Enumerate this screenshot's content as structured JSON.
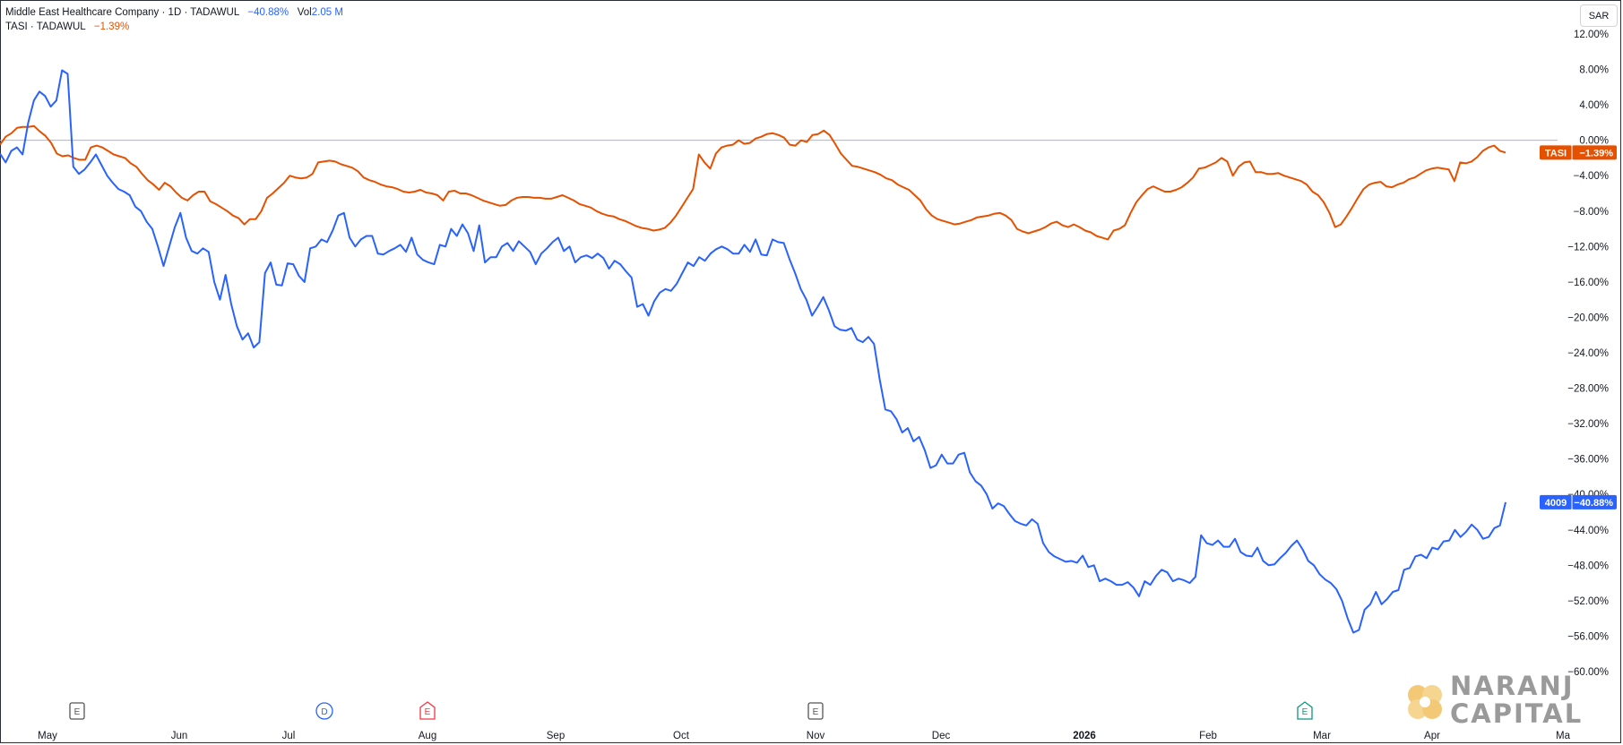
{
  "legend": {
    "main_name": "Middle East Healthcare Company",
    "main_interval": "1D",
    "main_exchange": "TADAWUL",
    "main_change": "−40.88%",
    "vol_label": "Vol",
    "vol_value": "2.05",
    "vol_unit": "M",
    "compare_name": "TASI",
    "compare_exchange": "TADAWUL",
    "compare_change": "−1.39%"
  },
  "currency": "SAR",
  "logo": {
    "line1": "NARANJ",
    "line2": "CAPITAL"
  },
  "colors": {
    "main": "#2962ff",
    "compare": "#e65100",
    "event_earnings": "#555555",
    "event_dividend": "#2962ff",
    "event_earnings_red": "#f23645",
    "event_earnings_teal": "#089981"
  },
  "chart_data": {
    "type": "line",
    "title": "",
    "ylim": [
      -60,
      12
    ],
    "y_ticks": [
      "12.00%",
      "8.00%",
      "4.00%",
      "0.00%",
      "-4.00%",
      "-8.00%",
      "-12.00%",
      "-16.00%",
      "-20.00%",
      "-24.00%",
      "-28.00%",
      "-32.00%",
      "-36.00%",
      "-40.00%",
      "-44.00%",
      "-48.00%",
      "-52.00%",
      "-56.00%",
      "-60.00%"
    ],
    "x_ticks": [
      {
        "label": "May",
        "bold": false
      },
      {
        "label": "Jun",
        "bold": false
      },
      {
        "label": "Jul",
        "bold": false
      },
      {
        "label": "Aug",
        "bold": false
      },
      {
        "label": "Sep",
        "bold": false
      },
      {
        "label": "Oct",
        "bold": false
      },
      {
        "label": "Nov",
        "bold": false
      },
      {
        "label": "Dec",
        "bold": false
      },
      {
        "label": "2026",
        "bold": true
      },
      {
        "label": "Feb",
        "bold": false
      },
      {
        "label": "Mar",
        "bold": false
      },
      {
        "label": "Apr",
        "bold": false
      },
      {
        "label": "Ma",
        "bold": false
      }
    ],
    "x_tick_index": [
      0,
      22,
      43,
      64,
      86,
      107,
      129,
      150,
      172,
      193,
      213,
      234,
      255
    ],
    "grid": false,
    "zero_line": true,
    "series": [
      {
        "name": "4009",
        "last_label": "−40.88%",
        "values": [
          -1.5,
          -2.5,
          -1.2,
          -0.8,
          -1.6,
          2,
          4.5,
          5.5,
          5,
          3.8,
          4.5,
          7.9,
          7.5,
          -3,
          -3.8,
          -3.3,
          -2.5,
          -1.6,
          -2.8,
          -4,
          -4.8,
          -5.5,
          -5.8,
          -6.2,
          -7.5,
          -8,
          -9.2,
          -10,
          -12,
          -14.2,
          -12,
          -9.8,
          -8.2,
          -11,
          -12.5,
          -12.8,
          -12.2,
          -12.6,
          -16,
          -18,
          -15.2,
          -18.5,
          -21,
          -22.5,
          -21.8,
          -23.4,
          -22.8,
          -15,
          -13.8,
          -16.3,
          -16.4,
          -13.9,
          -14,
          -15.3,
          -16,
          -12.2,
          -12,
          -11.2,
          -11.5,
          -10.2,
          -8.5,
          -8.2,
          -11,
          -12,
          -11.2,
          -10.8,
          -10.8,
          -12.8,
          -12.9,
          -12.5,
          -12.2,
          -11.8,
          -12.6,
          -11,
          -12.9,
          -13.5,
          -13.8,
          -14,
          -11.8,
          -12,
          -10,
          -10.8,
          -9.5,
          -10.5,
          -12.5,
          -9.6,
          -13.8,
          -13.2,
          -13.2,
          -12,
          -11.6,
          -12.5,
          -11.4,
          -12,
          -12.6,
          -14,
          -12.8,
          -12.2,
          -11.5,
          -11,
          -12.5,
          -12,
          -13.8,
          -13.2,
          -13,
          -13.3,
          -12.8,
          -13.3,
          -14.5,
          -13.6,
          -14,
          -14.8,
          -15.5,
          -18.8,
          -18.5,
          -19.8,
          -18.2,
          -17.2,
          -16.8,
          -17,
          -16.2,
          -15,
          -13.8,
          -14.2,
          -13.2,
          -13.6,
          -12.8,
          -12.3,
          -12,
          -12.3,
          -12.8,
          -12.8,
          -11.8,
          -12.6,
          -11.2,
          -12.9,
          -13,
          -11.2,
          -11.5,
          -11.6,
          -13.4,
          -15,
          -16.8,
          -18,
          -19.8,
          -18.8,
          -17.7,
          -19.2,
          -21,
          -21.4,
          -21.5,
          -21.2,
          -22.5,
          -22.8,
          -22.2,
          -23,
          -27,
          -30.4,
          -30.6,
          -31.5,
          -33,
          -32.5,
          -34,
          -33.5,
          -35,
          -37,
          -36.7,
          -35.5,
          -36.5,
          -36.5,
          -35.5,
          -35.3,
          -37.5,
          -38.5,
          -39,
          -40,
          -41.6,
          -41,
          -41.3,
          -42.2,
          -43,
          -43.3,
          -43.5,
          -42.8,
          -43.3,
          -45.5,
          -46.5,
          -47,
          -47.3,
          -47.6,
          -47.5,
          -47.7,
          -46.9,
          -48.2,
          -48,
          -49.8,
          -49.5,
          -49.8,
          -50.2,
          -50.2,
          -49.9,
          -50.5,
          -51.5,
          -49.8,
          -50.2,
          -49.2,
          -48.5,
          -48.8,
          -49.8,
          -49.5,
          -49.7,
          -50,
          -49.3,
          -44.6,
          -45.5,
          -45.7,
          -45.2,
          -45.9,
          -45.9,
          -45,
          -46.5,
          -46.9,
          -47,
          -46,
          -47.5,
          -48,
          -47.9,
          -47.2,
          -46.6,
          -45.8,
          -45.2,
          -46.2,
          -47.5,
          -48,
          -49,
          -49.6,
          -50,
          -50.7,
          -52,
          -54,
          -55.6,
          -55.3,
          -53,
          -52.4,
          -51,
          -52.4,
          -51.8,
          -51,
          -50.8,
          -48.5,
          -48.3,
          -47,
          -46.8,
          -47.2,
          -46,
          -46.2,
          -45.3,
          -45.2,
          -44,
          -44.8,
          -44.2,
          -43.4,
          -44,
          -45,
          -44.8,
          -43.8,
          -43.5,
          -40.88
        ]
      },
      {
        "name": "TASI",
        "last_label": "−1.39%",
        "values": [
          -0.5,
          0.4,
          0.8,
          1.4,
          1.5,
          1.5,
          1.6,
          1,
          0.5,
          -0.3,
          -1.5,
          -1.8,
          -1.7,
          -2,
          -2.2,
          -2.2,
          -0.8,
          -0.6,
          -0.8,
          -1.2,
          -1.6,
          -1.8,
          -2,
          -2.6,
          -3,
          -3.8,
          -4.5,
          -5,
          -5.6,
          -4.8,
          -5.2,
          -5.9,
          -6.5,
          -6.8,
          -6.2,
          -5.8,
          -5.8,
          -6.9,
          -7.2,
          -7.6,
          -8,
          -8.5,
          -8.8,
          -9.5,
          -8.9,
          -8.9,
          -8,
          -6.5,
          -6,
          -5.4,
          -4.8,
          -4,
          -4.2,
          -4.3,
          -4.2,
          -3.8,
          -2.5,
          -2.4,
          -2.3,
          -2.4,
          -2.7,
          -2.9,
          -3.1,
          -3.5,
          -4.2,
          -4.5,
          -4.7,
          -5,
          -5.2,
          -5.3,
          -5.5,
          -5.8,
          -5.9,
          -5.8,
          -5.6,
          -5.9,
          -6,
          -6.2,
          -6.8,
          -5.8,
          -5.7,
          -6,
          -6,
          -6.2,
          -6.5,
          -6.8,
          -7,
          -7.2,
          -7.4,
          -7.3,
          -6.8,
          -6.5,
          -6.4,
          -6.4,
          -6.5,
          -6.5,
          -6.6,
          -6.6,
          -6.4,
          -6.2,
          -6.5,
          -6.8,
          -7.2,
          -7.4,
          -7.6,
          -8,
          -8.3,
          -8.5,
          -8.6,
          -8.9,
          -9.1,
          -9.4,
          -9.7,
          -9.9,
          -10,
          -10.2,
          -10.1,
          -9.9,
          -9.3,
          -8.5,
          -7.5,
          -6.5,
          -5.5,
          -1.6,
          -2.5,
          -3.2,
          -1.5,
          -0.8,
          -0.6,
          -0.5,
          0,
          -0.4,
          -0.3,
          0.2,
          0.4,
          0.7,
          0.8,
          0.6,
          0.3,
          -0.5,
          -0.6,
          0,
          -0.2,
          0.6,
          0.7,
          1.1,
          0.6,
          -0.4,
          -1.5,
          -2.2,
          -2.9,
          -3,
          -3.2,
          -3.4,
          -3.6,
          -3.9,
          -4.3,
          -4.5,
          -5,
          -5.3,
          -5.6,
          -6.2,
          -6.8,
          -7.8,
          -8.5,
          -8.9,
          -9.1,
          -9.3,
          -9.5,
          -9.4,
          -9.2,
          -9,
          -8.7,
          -8.6,
          -8.5,
          -8.3,
          -8.2,
          -8.5,
          -9,
          -10,
          -10.3,
          -10.5,
          -10.3,
          -10.1,
          -9.8,
          -9.4,
          -9.2,
          -9.6,
          -9.8,
          -9.5,
          -9.8,
          -10.2,
          -10.4,
          -10.8,
          -11,
          -11.2,
          -10.2,
          -10,
          -9.6,
          -8.2,
          -7,
          -6.2,
          -5.5,
          -5.2,
          -5.5,
          -5.8,
          -5.8,
          -5.6,
          -5.3,
          -4.8,
          -4.2,
          -3.2,
          -3.1,
          -2.8,
          -2.5,
          -2,
          -2.4,
          -4,
          -3,
          -2.5,
          -2.4,
          -3.6,
          -3.6,
          -3.8,
          -3.8,
          -3.7,
          -4,
          -4.2,
          -4.4,
          -4.6,
          -5,
          -5.8,
          -6.2,
          -7,
          -8.2,
          -9.8,
          -9.5,
          -8.6,
          -7.6,
          -6.5,
          -5.5,
          -5,
          -4.8,
          -4.7,
          -5.2,
          -5.3,
          -5,
          -4.8,
          -4.4,
          -4.2,
          -3.8,
          -3.4,
          -3.2,
          -3.1,
          -3.2,
          -3.3,
          -4.6,
          -2.5,
          -2.6,
          -2.4,
          -1.9,
          -1.2,
          -0.8,
          -0.6,
          -1.2,
          -1.39
        ]
      }
    ],
    "events": [
      {
        "letter": "E",
        "x_index": 7,
        "kind": "earnings"
      },
      {
        "letter": "D",
        "x_index": 28,
        "kind": "dividend"
      },
      {
        "letter": "E",
        "x_index": 43,
        "kind": "earnings_red"
      },
      {
        "letter": "E",
        "x_index": 105,
        "kind": "earnings"
      },
      {
        "letter": "E",
        "x_index": 224,
        "kind": "earnings_teal"
      }
    ]
  }
}
